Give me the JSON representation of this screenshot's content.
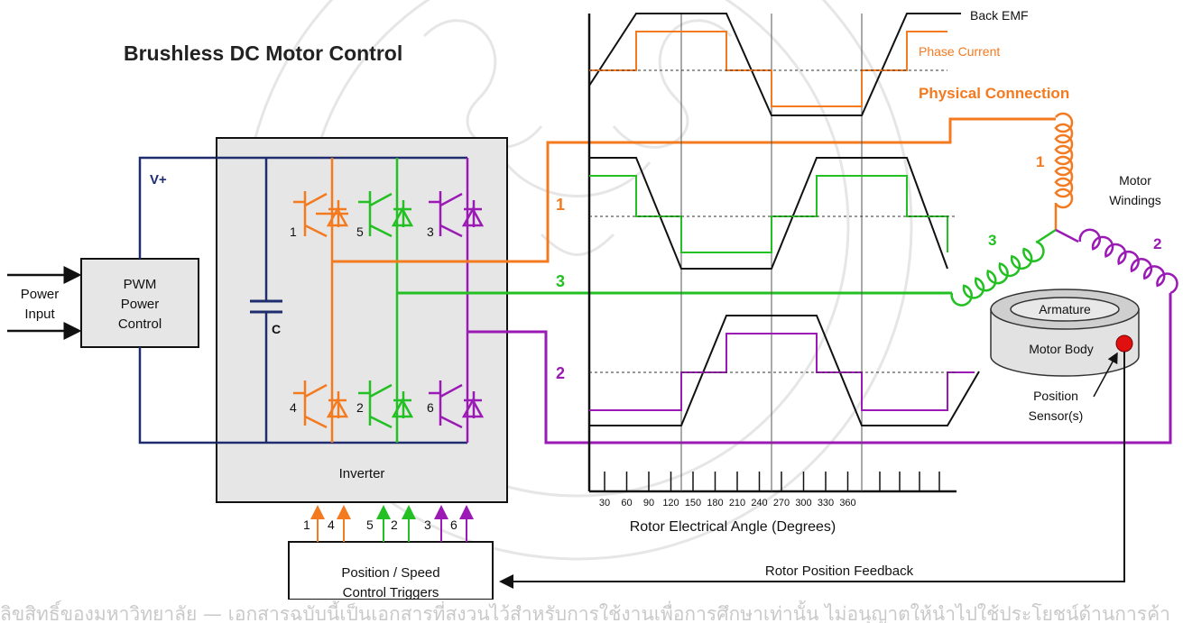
{
  "title": "Brushless DC Motor Control",
  "power": {
    "input_label_1": "Power",
    "input_label_2": "Input",
    "pwm_line_1": "PWM",
    "pwm_line_2": "Power",
    "pwm_line_3": "Control",
    "vplus": "V+",
    "capacitor": "C"
  },
  "inverter": {
    "label": "Inverter",
    "switch_numbers": [
      "1",
      "5",
      "3",
      "4",
      "2",
      "6"
    ],
    "trigger_numbers": [
      "1",
      "4",
      "5",
      "2",
      "3",
      "6"
    ]
  },
  "controller": {
    "line_1": "Position / Speed",
    "line_2": "Control Triggers"
  },
  "phase_labels": [
    "1",
    "3",
    "2"
  ],
  "legend": {
    "back_emf": "Back EMF",
    "phase_current": "Phase Current",
    "physical_connection": "Physical Connection"
  },
  "angle_ticks": [
    "30",
    "60",
    "90",
    "120",
    "150",
    "180",
    "210",
    "240",
    "270",
    "300",
    "330",
    "360"
  ],
  "xaxis_label": "Rotor Electrical Angle (Degrees)",
  "motor": {
    "windings_line_1": "Motor",
    "windings_line_2": "Windings",
    "winding_numbers": [
      "1",
      "3",
      "2"
    ],
    "armature": "Armature",
    "body": "Motor Body",
    "sensor_line_1": "Position",
    "sensor_line_2": "Sensor(s)"
  },
  "feedback_label": "Rotor Position Feedback",
  "watermark_text": "ลิขสิทธิ์ของมหาวิทยาลัย — เอกสารฉบับนี้เป็นเอกสารที่สงวนไว้สำหรับการใช้งานเพื่อการศึกษาเท่านั้น ไม่อนุญาตให้นำไปใช้ประโยชน์ด้านการค้า",
  "colors": {
    "phase1": "#f47a20",
    "phase3": "#22c022",
    "phase2": "#9b19b5",
    "bus": "#1f2d6e",
    "emf": "#111111",
    "box_fill": "#e6e6e6",
    "sensor": "#e01010"
  }
}
